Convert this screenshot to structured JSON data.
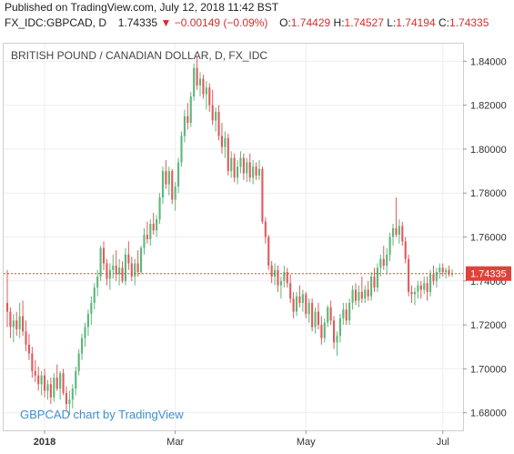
{
  "header": {
    "published": "Published on TradingView.com, July 12, 2018 11:42 BST",
    "symbol": "FX_IDC:GBPCAD, D",
    "last": "1.74335",
    "change_arrow": "▼",
    "change": "−0.00149 (−0.09%)",
    "open_label": "O:",
    "open": "1.74429",
    "high_label": "H:",
    "high": "1.74527",
    "low_label": "L:",
    "low": "1.74194",
    "close_label": "C:",
    "close": "1.74335"
  },
  "colors": {
    "up": "#5cb87a",
    "down": "#e05b5b",
    "price_label_bg": "#e0413a",
    "watermark": "#3d8fd1",
    "grid": "#eeeeee",
    "axis_text": "#333333"
  },
  "chart_data": {
    "type": "candlestick",
    "title": "BRITISH POUND / CANADIAN DOLLAR, D, FX_IDC",
    "watermark": "GBPCAD chart by TradingView",
    "y_ticks": [
      "1.84000",
      "1.82000",
      "1.80000",
      "1.78000",
      "1.76000",
      "1.74000",
      "1.72000",
      "1.70000",
      "1.68000"
    ],
    "ylim": [
      1.672,
      1.848
    ],
    "x_labels": [
      "2018",
      "Mar",
      "May",
      "Jul"
    ],
    "last_price": 1.74335,
    "last_price_label": "1.74335",
    "grid": true,
    "candles": [
      {
        "date": "2017-12-13",
        "o": 1.73,
        "h": 1.745,
        "l": 1.719,
        "c": 1.726
      },
      {
        "date": "2017-12-14",
        "o": 1.726,
        "h": 1.728,
        "l": 1.714,
        "c": 1.719
      },
      {
        "date": "2017-12-15",
        "o": 1.719,
        "h": 1.725,
        "l": 1.712,
        "c": 1.722
      },
      {
        "date": "2017-12-18",
        "o": 1.722,
        "h": 1.726,
        "l": 1.715,
        "c": 1.718
      },
      {
        "date": "2017-12-19",
        "o": 1.718,
        "h": 1.73,
        "l": 1.714,
        "c": 1.724
      },
      {
        "date": "2017-12-20",
        "o": 1.724,
        "h": 1.731,
        "l": 1.715,
        "c": 1.717
      },
      {
        "date": "2017-12-21",
        "o": 1.717,
        "h": 1.722,
        "l": 1.708,
        "c": 1.711
      },
      {
        "date": "2017-12-22",
        "o": 1.711,
        "h": 1.716,
        "l": 1.704,
        "c": 1.707
      },
      {
        "date": "2017-12-26",
        "o": 1.707,
        "h": 1.71,
        "l": 1.696,
        "c": 1.699
      },
      {
        "date": "2017-12-27",
        "o": 1.699,
        "h": 1.704,
        "l": 1.694,
        "c": 1.697
      },
      {
        "date": "2017-12-28",
        "o": 1.697,
        "h": 1.701,
        "l": 1.69,
        "c": 1.693
      },
      {
        "date": "2017-12-29",
        "o": 1.693,
        "h": 1.699,
        "l": 1.688,
        "c": 1.697
      },
      {
        "date": "2018-01-02",
        "o": 1.697,
        "h": 1.7,
        "l": 1.687,
        "c": 1.69
      },
      {
        "date": "2018-01-03",
        "o": 1.69,
        "h": 1.695,
        "l": 1.686,
        "c": 1.693
      },
      {
        "date": "2018-01-04",
        "o": 1.693,
        "h": 1.696,
        "l": 1.684,
        "c": 1.687
      },
      {
        "date": "2018-01-05",
        "o": 1.687,
        "h": 1.698,
        "l": 1.685,
        "c": 1.696
      },
      {
        "date": "2018-01-08",
        "o": 1.696,
        "h": 1.702,
        "l": 1.69,
        "c": 1.691
      },
      {
        "date": "2018-01-09",
        "o": 1.691,
        "h": 1.699,
        "l": 1.686,
        "c": 1.698
      },
      {
        "date": "2018-01-10",
        "o": 1.698,
        "h": 1.7,
        "l": 1.688,
        "c": 1.689
      },
      {
        "date": "2018-01-11",
        "o": 1.689,
        "h": 1.692,
        "l": 1.681,
        "c": 1.684
      },
      {
        "date": "2018-01-12",
        "o": 1.684,
        "h": 1.69,
        "l": 1.679,
        "c": 1.686
      },
      {
        "date": "2018-01-15",
        "o": 1.686,
        "h": 1.693,
        "l": 1.682,
        "c": 1.691
      },
      {
        "date": "2018-01-16",
        "o": 1.691,
        "h": 1.701,
        "l": 1.688,
        "c": 1.699
      },
      {
        "date": "2018-01-17",
        "o": 1.699,
        "h": 1.709,
        "l": 1.697,
        "c": 1.707
      },
      {
        "date": "2018-01-18",
        "o": 1.707,
        "h": 1.716,
        "l": 1.704,
        "c": 1.714
      },
      {
        "date": "2018-01-19",
        "o": 1.714,
        "h": 1.721,
        "l": 1.71,
        "c": 1.719
      },
      {
        "date": "2018-01-22",
        "o": 1.719,
        "h": 1.727,
        "l": 1.715,
        "c": 1.725
      },
      {
        "date": "2018-01-23",
        "o": 1.725,
        "h": 1.733,
        "l": 1.72,
        "c": 1.73
      },
      {
        "date": "2018-01-24",
        "o": 1.73,
        "h": 1.739,
        "l": 1.727,
        "c": 1.737
      },
      {
        "date": "2018-01-25",
        "o": 1.737,
        "h": 1.745,
        "l": 1.733,
        "c": 1.742
      },
      {
        "date": "2018-01-26",
        "o": 1.742,
        "h": 1.756,
        "l": 1.74,
        "c": 1.755
      },
      {
        "date": "2018-01-29",
        "o": 1.755,
        "h": 1.758,
        "l": 1.745,
        "c": 1.748
      },
      {
        "date": "2018-01-30",
        "o": 1.748,
        "h": 1.75,
        "l": 1.738,
        "c": 1.741
      },
      {
        "date": "2018-01-31",
        "o": 1.741,
        "h": 1.748,
        "l": 1.736,
        "c": 1.745
      },
      {
        "date": "2018-02-01",
        "o": 1.745,
        "h": 1.752,
        "l": 1.741,
        "c": 1.747
      },
      {
        "date": "2018-02-02",
        "o": 1.747,
        "h": 1.754,
        "l": 1.74,
        "c": 1.743
      },
      {
        "date": "2018-02-05",
        "o": 1.743,
        "h": 1.75,
        "l": 1.738,
        "c": 1.746
      },
      {
        "date": "2018-02-06",
        "o": 1.746,
        "h": 1.749,
        "l": 1.739,
        "c": 1.74
      },
      {
        "date": "2018-02-07",
        "o": 1.74,
        "h": 1.755,
        "l": 1.738,
        "c": 1.752
      },
      {
        "date": "2018-02-08",
        "o": 1.752,
        "h": 1.758,
        "l": 1.745,
        "c": 1.748
      },
      {
        "date": "2018-02-09",
        "o": 1.748,
        "h": 1.751,
        "l": 1.74,
        "c": 1.742
      },
      {
        "date": "2018-02-12",
        "o": 1.742,
        "h": 1.75,
        "l": 1.738,
        "c": 1.748
      },
      {
        "date": "2018-02-13",
        "o": 1.748,
        "h": 1.754,
        "l": 1.742,
        "c": 1.744
      },
      {
        "date": "2018-02-14",
        "o": 1.744,
        "h": 1.756,
        "l": 1.743,
        "c": 1.755
      },
      {
        "date": "2018-02-15",
        "o": 1.755,
        "h": 1.764,
        "l": 1.752,
        "c": 1.761
      },
      {
        "date": "2018-02-16",
        "o": 1.761,
        "h": 1.767,
        "l": 1.757,
        "c": 1.759
      },
      {
        "date": "2018-02-19",
        "o": 1.759,
        "h": 1.768,
        "l": 1.756,
        "c": 1.766
      },
      {
        "date": "2018-02-20",
        "o": 1.766,
        "h": 1.771,
        "l": 1.761,
        "c": 1.763
      },
      {
        "date": "2018-02-21",
        "o": 1.763,
        "h": 1.77,
        "l": 1.76,
        "c": 1.768
      },
      {
        "date": "2018-02-22",
        "o": 1.768,
        "h": 1.78,
        "l": 1.766,
        "c": 1.778
      },
      {
        "date": "2018-02-23",
        "o": 1.778,
        "h": 1.792,
        "l": 1.775,
        "c": 1.79
      },
      {
        "date": "2018-02-26",
        "o": 1.79,
        "h": 1.795,
        "l": 1.782,
        "c": 1.784
      },
      {
        "date": "2018-02-27",
        "o": 1.784,
        "h": 1.792,
        "l": 1.779,
        "c": 1.79
      },
      {
        "date": "2018-02-28",
        "o": 1.79,
        "h": 1.791,
        "l": 1.775,
        "c": 1.777
      },
      {
        "date": "2018-03-01",
        "o": 1.777,
        "h": 1.785,
        "l": 1.772,
        "c": 1.783
      },
      {
        "date": "2018-03-02",
        "o": 1.783,
        "h": 1.796,
        "l": 1.78,
        "c": 1.794
      },
      {
        "date": "2018-03-05",
        "o": 1.794,
        "h": 1.808,
        "l": 1.792,
        "c": 1.806
      },
      {
        "date": "2018-03-06",
        "o": 1.806,
        "h": 1.818,
        "l": 1.803,
        "c": 1.815
      },
      {
        "date": "2018-03-07",
        "o": 1.815,
        "h": 1.821,
        "l": 1.809,
        "c": 1.812
      },
      {
        "date": "2018-03-08",
        "o": 1.812,
        "h": 1.826,
        "l": 1.81,
        "c": 1.824
      },
      {
        "date": "2018-03-09",
        "o": 1.824,
        "h": 1.839,
        "l": 1.822,
        "c": 1.837
      },
      {
        "date": "2018-03-12",
        "o": 1.837,
        "h": 1.842,
        "l": 1.827,
        "c": 1.829
      },
      {
        "date": "2018-03-13",
        "o": 1.829,
        "h": 1.835,
        "l": 1.824,
        "c": 1.832
      },
      {
        "date": "2018-03-14",
        "o": 1.832,
        "h": 1.834,
        "l": 1.823,
        "c": 1.825
      },
      {
        "date": "2018-03-15",
        "o": 1.825,
        "h": 1.831,
        "l": 1.818,
        "c": 1.828
      },
      {
        "date": "2018-03-16",
        "o": 1.828,
        "h": 1.83,
        "l": 1.817,
        "c": 1.82
      },
      {
        "date": "2018-03-19",
        "o": 1.82,
        "h": 1.827,
        "l": 1.811,
        "c": 1.813
      },
      {
        "date": "2018-03-20",
        "o": 1.813,
        "h": 1.819,
        "l": 1.808,
        "c": 1.817
      },
      {
        "date": "2018-03-21",
        "o": 1.817,
        "h": 1.82,
        "l": 1.804,
        "c": 1.806
      },
      {
        "date": "2018-03-22",
        "o": 1.806,
        "h": 1.812,
        "l": 1.798,
        "c": 1.801
      },
      {
        "date": "2018-03-23",
        "o": 1.801,
        "h": 1.808,
        "l": 1.796,
        "c": 1.805
      },
      {
        "date": "2018-03-26",
        "o": 1.805,
        "h": 1.807,
        "l": 1.788,
        "c": 1.79
      },
      {
        "date": "2018-03-27",
        "o": 1.79,
        "h": 1.799,
        "l": 1.787,
        "c": 1.796
      },
      {
        "date": "2018-03-28",
        "o": 1.796,
        "h": 1.798,
        "l": 1.785,
        "c": 1.787
      },
      {
        "date": "2018-03-29",
        "o": 1.787,
        "h": 1.795,
        "l": 1.784,
        "c": 1.792
      },
      {
        "date": "2018-04-02",
        "o": 1.792,
        "h": 1.799,
        "l": 1.789,
        "c": 1.796
      },
      {
        "date": "2018-04-03",
        "o": 1.796,
        "h": 1.798,
        "l": 1.786,
        "c": 1.789
      },
      {
        "date": "2018-04-04",
        "o": 1.789,
        "h": 1.796,
        "l": 1.785,
        "c": 1.794
      },
      {
        "date": "2018-04-05",
        "o": 1.794,
        "h": 1.798,
        "l": 1.785,
        "c": 1.787
      },
      {
        "date": "2018-04-06",
        "o": 1.787,
        "h": 1.795,
        "l": 1.784,
        "c": 1.792
      },
      {
        "date": "2018-04-09",
        "o": 1.792,
        "h": 1.794,
        "l": 1.786,
        "c": 1.788
      },
      {
        "date": "2018-04-10",
        "o": 1.788,
        "h": 1.795,
        "l": 1.786,
        "c": 1.791
      },
      {
        "date": "2018-04-11",
        "o": 1.791,
        "h": 1.792,
        "l": 1.766,
        "c": 1.767
      },
      {
        "date": "2018-04-12",
        "o": 1.767,
        "h": 1.769,
        "l": 1.757,
        "c": 1.76
      },
      {
        "date": "2018-04-13",
        "o": 1.76,
        "h": 1.761,
        "l": 1.745,
        "c": 1.747
      },
      {
        "date": "2018-04-16",
        "o": 1.747,
        "h": 1.749,
        "l": 1.739,
        "c": 1.742
      },
      {
        "date": "2018-04-17",
        "o": 1.742,
        "h": 1.748,
        "l": 1.738,
        "c": 1.745
      },
      {
        "date": "2018-04-18",
        "o": 1.745,
        "h": 1.747,
        "l": 1.735,
        "c": 1.738
      },
      {
        "date": "2018-04-19",
        "o": 1.738,
        "h": 1.742,
        "l": 1.732,
        "c": 1.74
      },
      {
        "date": "2018-04-20",
        "o": 1.74,
        "h": 1.747,
        "l": 1.737,
        "c": 1.744
      },
      {
        "date": "2018-04-23",
        "o": 1.744,
        "h": 1.746,
        "l": 1.737,
        "c": 1.739
      },
      {
        "date": "2018-04-24",
        "o": 1.739,
        "h": 1.743,
        "l": 1.73,
        "c": 1.732
      },
      {
        "date": "2018-04-25",
        "o": 1.732,
        "h": 1.735,
        "l": 1.723,
        "c": 1.726
      },
      {
        "date": "2018-04-26",
        "o": 1.726,
        "h": 1.735,
        "l": 1.724,
        "c": 1.733
      },
      {
        "date": "2018-04-27",
        "o": 1.733,
        "h": 1.738,
        "l": 1.728,
        "c": 1.73
      },
      {
        "date": "2018-04-30",
        "o": 1.73,
        "h": 1.736,
        "l": 1.726,
        "c": 1.734
      },
      {
        "date": "2018-05-01",
        "o": 1.734,
        "h": 1.735,
        "l": 1.723,
        "c": 1.725
      },
      {
        "date": "2018-05-02",
        "o": 1.725,
        "h": 1.732,
        "l": 1.721,
        "c": 1.73
      },
      {
        "date": "2018-05-03",
        "o": 1.73,
        "h": 1.732,
        "l": 1.717,
        "c": 1.719
      },
      {
        "date": "2018-05-04",
        "o": 1.719,
        "h": 1.728,
        "l": 1.716,
        "c": 1.726
      },
      {
        "date": "2018-05-07",
        "o": 1.726,
        "h": 1.73,
        "l": 1.718,
        "c": 1.72
      },
      {
        "date": "2018-05-08",
        "o": 1.72,
        "h": 1.724,
        "l": 1.711,
        "c": 1.714
      },
      {
        "date": "2018-05-09",
        "o": 1.714,
        "h": 1.723,
        "l": 1.712,
        "c": 1.721
      },
      {
        "date": "2018-05-10",
        "o": 1.721,
        "h": 1.729,
        "l": 1.719,
        "c": 1.728
      },
      {
        "date": "2018-05-11",
        "o": 1.728,
        "h": 1.731,
        "l": 1.72,
        "c": 1.722
      },
      {
        "date": "2018-05-14",
        "o": 1.722,
        "h": 1.724,
        "l": 1.709,
        "c": 1.712
      },
      {
        "date": "2018-05-15",
        "o": 1.712,
        "h": 1.717,
        "l": 1.706,
        "c": 1.715
      },
      {
        "date": "2018-05-16",
        "o": 1.715,
        "h": 1.725,
        "l": 1.712,
        "c": 1.723
      },
      {
        "date": "2018-05-17",
        "o": 1.723,
        "h": 1.73,
        "l": 1.72,
        "c": 1.727
      },
      {
        "date": "2018-05-18",
        "o": 1.727,
        "h": 1.73,
        "l": 1.72,
        "c": 1.722
      },
      {
        "date": "2018-05-21",
        "o": 1.722,
        "h": 1.732,
        "l": 1.72,
        "c": 1.73
      },
      {
        "date": "2018-05-22",
        "o": 1.73,
        "h": 1.738,
        "l": 1.727,
        "c": 1.736
      },
      {
        "date": "2018-05-23",
        "o": 1.736,
        "h": 1.739,
        "l": 1.729,
        "c": 1.731
      },
      {
        "date": "2018-05-24",
        "o": 1.731,
        "h": 1.738,
        "l": 1.728,
        "c": 1.735
      },
      {
        "date": "2018-05-25",
        "o": 1.735,
        "h": 1.742,
        "l": 1.73,
        "c": 1.732
      },
      {
        "date": "2018-05-28",
        "o": 1.732,
        "h": 1.738,
        "l": 1.73,
        "c": 1.736
      },
      {
        "date": "2018-05-29",
        "o": 1.736,
        "h": 1.74,
        "l": 1.731,
        "c": 1.733
      },
      {
        "date": "2018-05-30",
        "o": 1.733,
        "h": 1.744,
        "l": 1.731,
        "c": 1.742
      },
      {
        "date": "2018-05-31",
        "o": 1.742,
        "h": 1.746,
        "l": 1.735,
        "c": 1.737
      },
      {
        "date": "2018-06-01",
        "o": 1.737,
        "h": 1.748,
        "l": 1.735,
        "c": 1.746
      },
      {
        "date": "2018-06-04",
        "o": 1.746,
        "h": 1.752,
        "l": 1.742,
        "c": 1.75
      },
      {
        "date": "2018-06-05",
        "o": 1.75,
        "h": 1.756,
        "l": 1.745,
        "c": 1.747
      },
      {
        "date": "2018-06-06",
        "o": 1.747,
        "h": 1.755,
        "l": 1.743,
        "c": 1.752
      },
      {
        "date": "2018-06-07",
        "o": 1.752,
        "h": 1.762,
        "l": 1.749,
        "c": 1.76
      },
      {
        "date": "2018-06-08",
        "o": 1.76,
        "h": 1.766,
        "l": 1.756,
        "c": 1.764
      },
      {
        "date": "2018-06-11",
        "o": 1.764,
        "h": 1.778,
        "l": 1.76,
        "c": 1.761
      },
      {
        "date": "2018-06-12",
        "o": 1.761,
        "h": 1.768,
        "l": 1.757,
        "c": 1.765
      },
      {
        "date": "2018-06-13",
        "o": 1.765,
        "h": 1.767,
        "l": 1.756,
        "c": 1.758
      },
      {
        "date": "2018-06-14",
        "o": 1.758,
        "h": 1.76,
        "l": 1.748,
        "c": 1.75
      },
      {
        "date": "2018-06-15",
        "o": 1.75,
        "h": 1.752,
        "l": 1.733,
        "c": 1.735
      },
      {
        "date": "2018-06-18",
        "o": 1.735,
        "h": 1.738,
        "l": 1.73,
        "c": 1.734
      },
      {
        "date": "2018-06-19",
        "o": 1.734,
        "h": 1.737,
        "l": 1.729,
        "c": 1.735
      },
      {
        "date": "2018-06-20",
        "o": 1.735,
        "h": 1.74,
        "l": 1.732,
        "c": 1.738
      },
      {
        "date": "2018-06-21",
        "o": 1.738,
        "h": 1.74,
        "l": 1.732,
        "c": 1.736
      },
      {
        "date": "2018-06-22",
        "o": 1.736,
        "h": 1.742,
        "l": 1.734,
        "c": 1.739
      },
      {
        "date": "2018-06-25",
        "o": 1.739,
        "h": 1.742,
        "l": 1.731,
        "c": 1.735
      },
      {
        "date": "2018-06-26",
        "o": 1.735,
        "h": 1.745,
        "l": 1.733,
        "c": 1.743
      },
      {
        "date": "2018-06-27",
        "o": 1.743,
        "h": 1.747,
        "l": 1.738,
        "c": 1.74
      },
      {
        "date": "2018-06-28",
        "o": 1.74,
        "h": 1.746,
        "l": 1.737,
        "c": 1.744
      },
      {
        "date": "2018-06-29",
        "o": 1.744,
        "h": 1.748,
        "l": 1.741,
        "c": 1.746
      },
      {
        "date": "2018-07-02",
        "o": 1.746,
        "h": 1.748,
        "l": 1.742,
        "c": 1.744
      },
      {
        "date": "2018-07-03",
        "o": 1.744,
        "h": 1.746,
        "l": 1.741,
        "c": 1.745
      },
      {
        "date": "2018-07-04",
        "o": 1.745,
        "h": 1.747,
        "l": 1.742,
        "c": 1.743
      },
      {
        "date": "2018-07-05",
        "o": 1.743,
        "h": 1.7453,
        "l": 1.7419,
        "c": 1.7433
      }
    ]
  }
}
